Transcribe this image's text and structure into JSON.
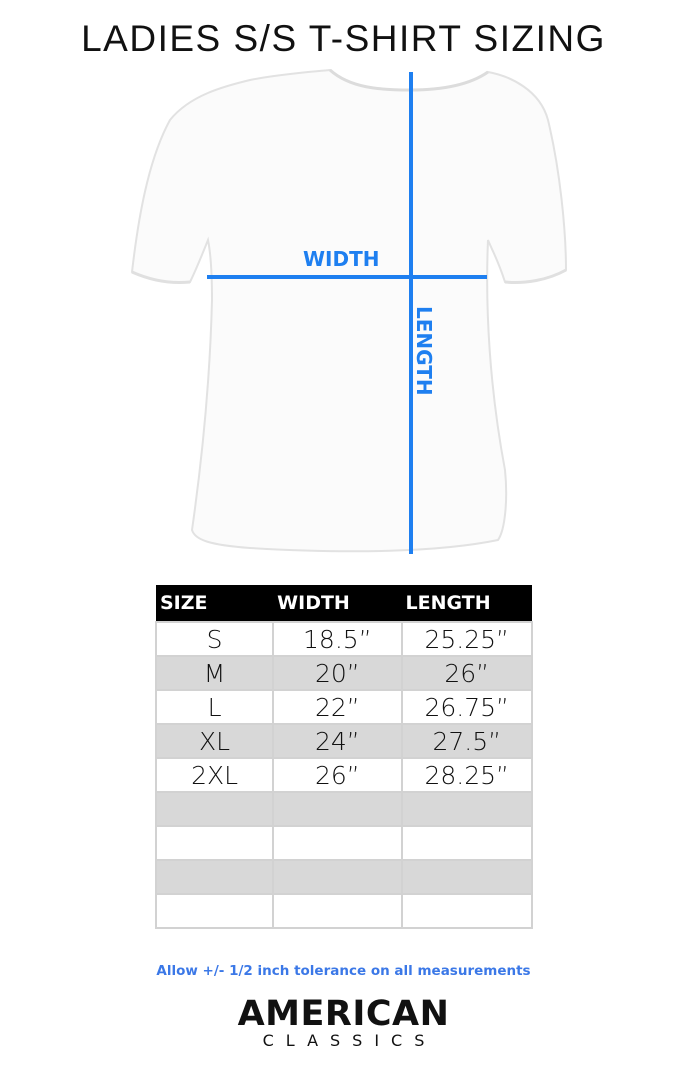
{
  "title": "LADIES S/S T-SHIRT SIZING",
  "diagram": {
    "width_label": "WIDTH",
    "length_label": "LENGTH",
    "accent_color": "#1e7ff0"
  },
  "table": {
    "headers": [
      "SIZE",
      "WIDTH",
      "LENGTH"
    ],
    "rows": [
      [
        "S",
        "18.5”",
        "25.25”"
      ],
      [
        "M",
        "20”",
        "26”"
      ],
      [
        "L",
        "22”",
        "26.75”"
      ],
      [
        "XL",
        "24”",
        "27.5”"
      ],
      [
        "2XL",
        "26”",
        "28.25”"
      ],
      [
        "",
        "",
        ""
      ],
      [
        "",
        "",
        ""
      ],
      [
        "",
        "",
        ""
      ],
      [
        "",
        "",
        ""
      ]
    ]
  },
  "note": "Allow +/- 1/2 inch tolerance on all measurements",
  "brand": {
    "line1": "AMERICAN",
    "line2": "CLASSICS"
  }
}
